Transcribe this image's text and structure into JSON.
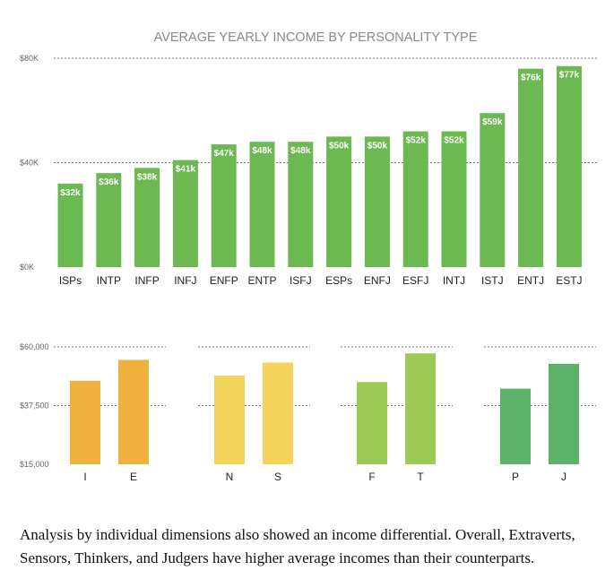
{
  "caption": "Analysis by individual dimensions also showed an income differential. Overall, Extraverts, Sensors, Thinkers, and Judgers have higher average incomes than their counterparts.",
  "chart_data": [
    {
      "type": "bar",
      "title": "AVERAGE YEARLY INCOME BY PERSONALITY TYPE",
      "categories": [
        "ISPs",
        "INTP",
        "INFP",
        "INFJ",
        "ENFP",
        "ENTP",
        "ISFJ",
        "ESPs",
        "ENFJ",
        "ESFJ",
        "INTJ",
        "ISTJ",
        "ENTJ",
        "ESTJ"
      ],
      "values": [
        32,
        36,
        38,
        41,
        47,
        48,
        48,
        50,
        50,
        52,
        52,
        59,
        76,
        77
      ],
      "data_labels": [
        "$32k",
        "$36k",
        "$38k",
        "$41k",
        "$47k",
        "$48k",
        "$48k",
        "$50k",
        "$50k",
        "$52k",
        "$52k",
        "$59k",
        "$76k",
        "$77k"
      ],
      "unit": "thousands USD",
      "ylim": [
        0,
        80
      ],
      "yticks": [
        0,
        40,
        80
      ],
      "ytick_labels": [
        "$0K",
        "$40K",
        "$80K"
      ],
      "grid": true,
      "bar_color": "#6cb851",
      "xlabel": "",
      "ylabel": ""
    },
    {
      "type": "bar",
      "title": "",
      "ylim": [
        15000,
        60000
      ],
      "yticks": [
        15000,
        37500,
        60000
      ],
      "ytick_labels": [
        "$15,000",
        "$37,500",
        "$60,000"
      ],
      "grid": true,
      "groups": [
        {
          "categories": [
            "I",
            "E"
          ],
          "values": [
            47000,
            55000
          ],
          "color": "#f0b13e"
        },
        {
          "categories": [
            "N",
            "S"
          ],
          "values": [
            49000,
            54000
          ],
          "color": "#f3d35c"
        },
        {
          "categories": [
            "F",
            "T"
          ],
          "values": [
            46500,
            57500
          ],
          "color": "#9dc955"
        },
        {
          "categories": [
            "P",
            "J"
          ],
          "values": [
            44000,
            53500
          ],
          "color": "#5bb36a"
        }
      ]
    }
  ]
}
